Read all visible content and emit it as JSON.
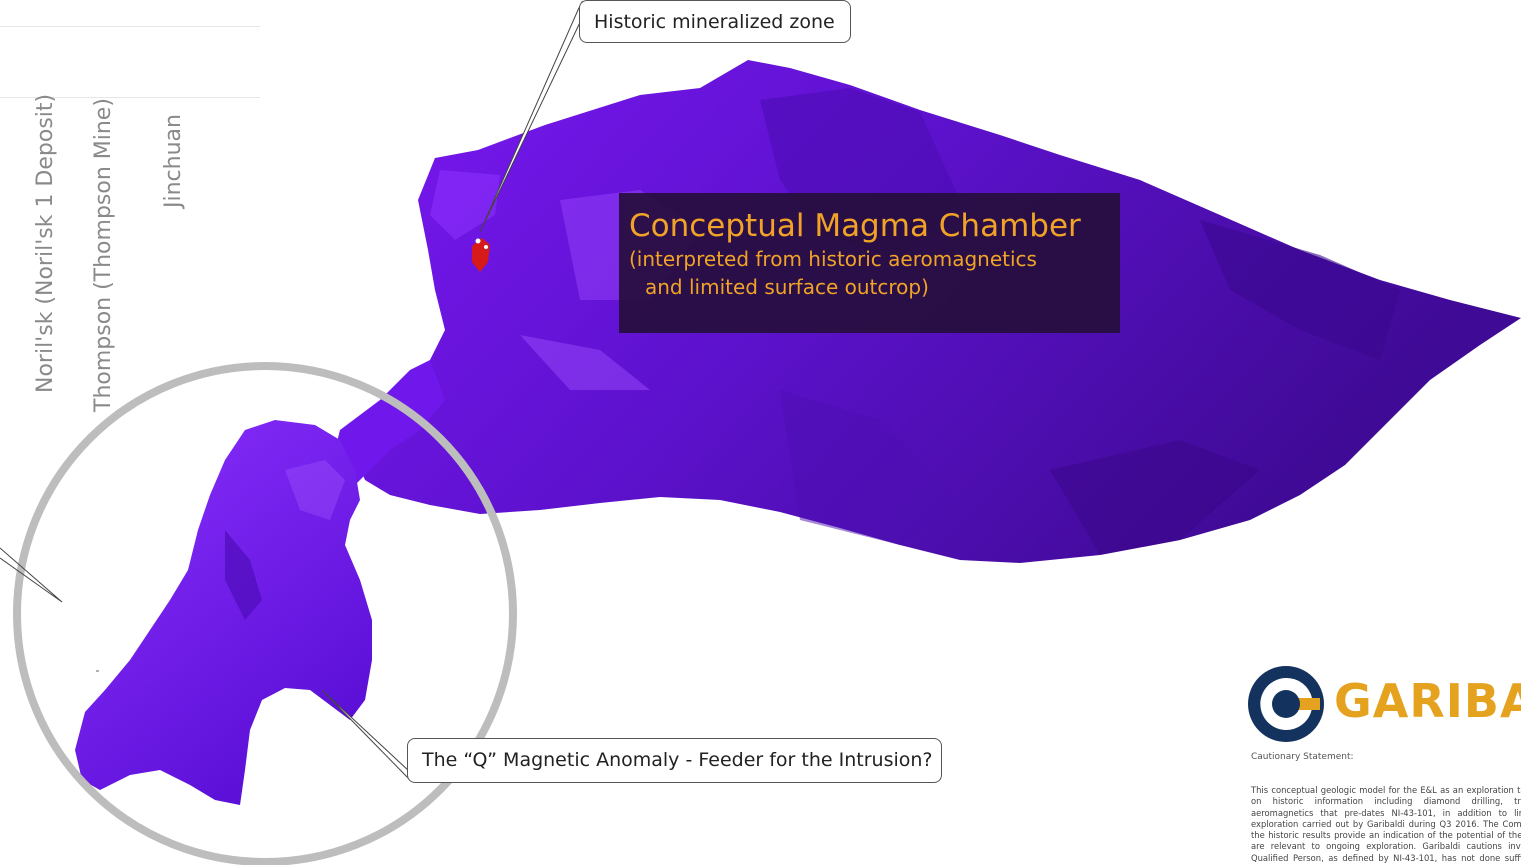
{
  "deposits": [
    {
      "label": "Noril'sk (Noril'sk 1 Deposit)"
    },
    {
      "label": "Thompson (Thompson Mine)"
    },
    {
      "label": "Jinchuan"
    }
  ],
  "callouts": {
    "historic_zone": "Historic mineralized zone",
    "q_anomaly": "The “Q” Magnetic Anomaly - Feeder for the Intrusion?"
  },
  "magma_chamber": {
    "title": "Conceptual Magma Chamber",
    "subtitle_line1": "(interpreted from historic aeromagnetics",
    "subtitle_line2": "and limited surface outcrop)"
  },
  "logo": {
    "text": "GARIBALDI"
  },
  "cautionary": {
    "heading": "Cautionary Statement:",
    "body": "This conceptual geologic model for the E&L as an exploration target is based on historic information including diamond drilling, trenching and aeromagnetics that pre-dates NI-43-101, in addition to limited surface exploration carried out by Garibaldi during Q3 2016. The Company believes the historic results provide an indication of the potential of the property and are relevant to ongoing exploration. Garibaldi cautions investors that a Qualified Person, as defined by NI-43-101, has not done sufficient work to classify the historic E&L deposit resource estimate."
  },
  "colors": {
    "body": "#7a12f5",
    "body_dark": "#4a0aa8",
    "body_light": "#9a3cff",
    "ring": "#bdbdbd",
    "accent": "#f0a326",
    "logo_blue": "#13325e",
    "logo_gold": "#e5a21e"
  }
}
